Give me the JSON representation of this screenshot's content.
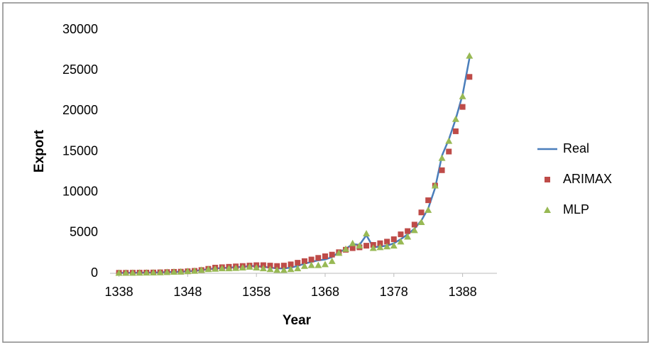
{
  "chart_data": {
    "type": "line",
    "x_label": "Year",
    "y_label": "Export",
    "x": [
      1338,
      1339,
      1340,
      1341,
      1342,
      1343,
      1344,
      1345,
      1346,
      1347,
      1348,
      1349,
      1350,
      1351,
      1352,
      1353,
      1354,
      1355,
      1356,
      1357,
      1358,
      1359,
      1360,
      1361,
      1362,
      1363,
      1364,
      1365,
      1366,
      1367,
      1368,
      1369,
      1370,
      1371,
      1372,
      1373,
      1374,
      1375,
      1376,
      1377,
      1378,
      1379,
      1380,
      1381,
      1382,
      1383,
      1384,
      1385,
      1386,
      1387,
      1388,
      1389
    ],
    "series": [
      {
        "name": "Real",
        "color": "#4a7ebb",
        "style": "line",
        "values": [
          50,
          60,
          70,
          80,
          90,
          100,
          120,
          150,
          180,
          200,
          250,
          300,
          400,
          500,
          600,
          650,
          700,
          750,
          800,
          900,
          900,
          800,
          700,
          600,
          600,
          700,
          900,
          1200,
          1400,
          1600,
          1700,
          2000,
          2600,
          3000,
          3600,
          3500,
          4700,
          3200,
          3300,
          3400,
          3700,
          4200,
          4800,
          5500,
          6500,
          8000,
          10500,
          14500,
          16500,
          19000,
          22000,
          26500
        ]
      },
      {
        "name": "ARIMAX",
        "color": "#be4b48",
        "style": "square",
        "values": [
          60,
          60,
          70,
          80,
          90,
          100,
          120,
          150,
          180,
          200,
          250,
          300,
          400,
          550,
          700,
          750,
          800,
          850,
          900,
          950,
          1000,
          1000,
          950,
          900,
          950,
          1100,
          1300,
          1500,
          1700,
          1900,
          2100,
          2300,
          2600,
          2900,
          3100,
          3200,
          3400,
          3500,
          3700,
          3900,
          4200,
          4800,
          5200,
          6000,
          7500,
          9000,
          10800,
          12700,
          15000,
          17500,
          20500,
          24200
        ]
      },
      {
        "name": "MLP",
        "color": "#98b954",
        "style": "triangle",
        "values": [
          40,
          50,
          60,
          70,
          80,
          90,
          110,
          140,
          170,
          200,
          250,
          300,
          400,
          500,
          550,
          600,
          600,
          650,
          700,
          800,
          700,
          600,
          500,
          400,
          400,
          500,
          600,
          900,
          1000,
          1000,
          1100,
          1500,
          2500,
          3000,
          3700,
          3400,
          4900,
          3100,
          3200,
          3300,
          3400,
          3900,
          4500,
          5300,
          6300,
          7800,
          10800,
          14200,
          16300,
          19000,
          21800,
          26800
        ]
      }
    ],
    "xlim": [
      1336.7,
      1393
    ],
    "ylim": [
      0,
      30000
    ],
    "xticks": [
      1338,
      1348,
      1358,
      1368,
      1378,
      1388
    ],
    "yticks": [
      0,
      5000,
      10000,
      15000,
      20000,
      25000,
      30000
    ],
    "legend": "right"
  }
}
